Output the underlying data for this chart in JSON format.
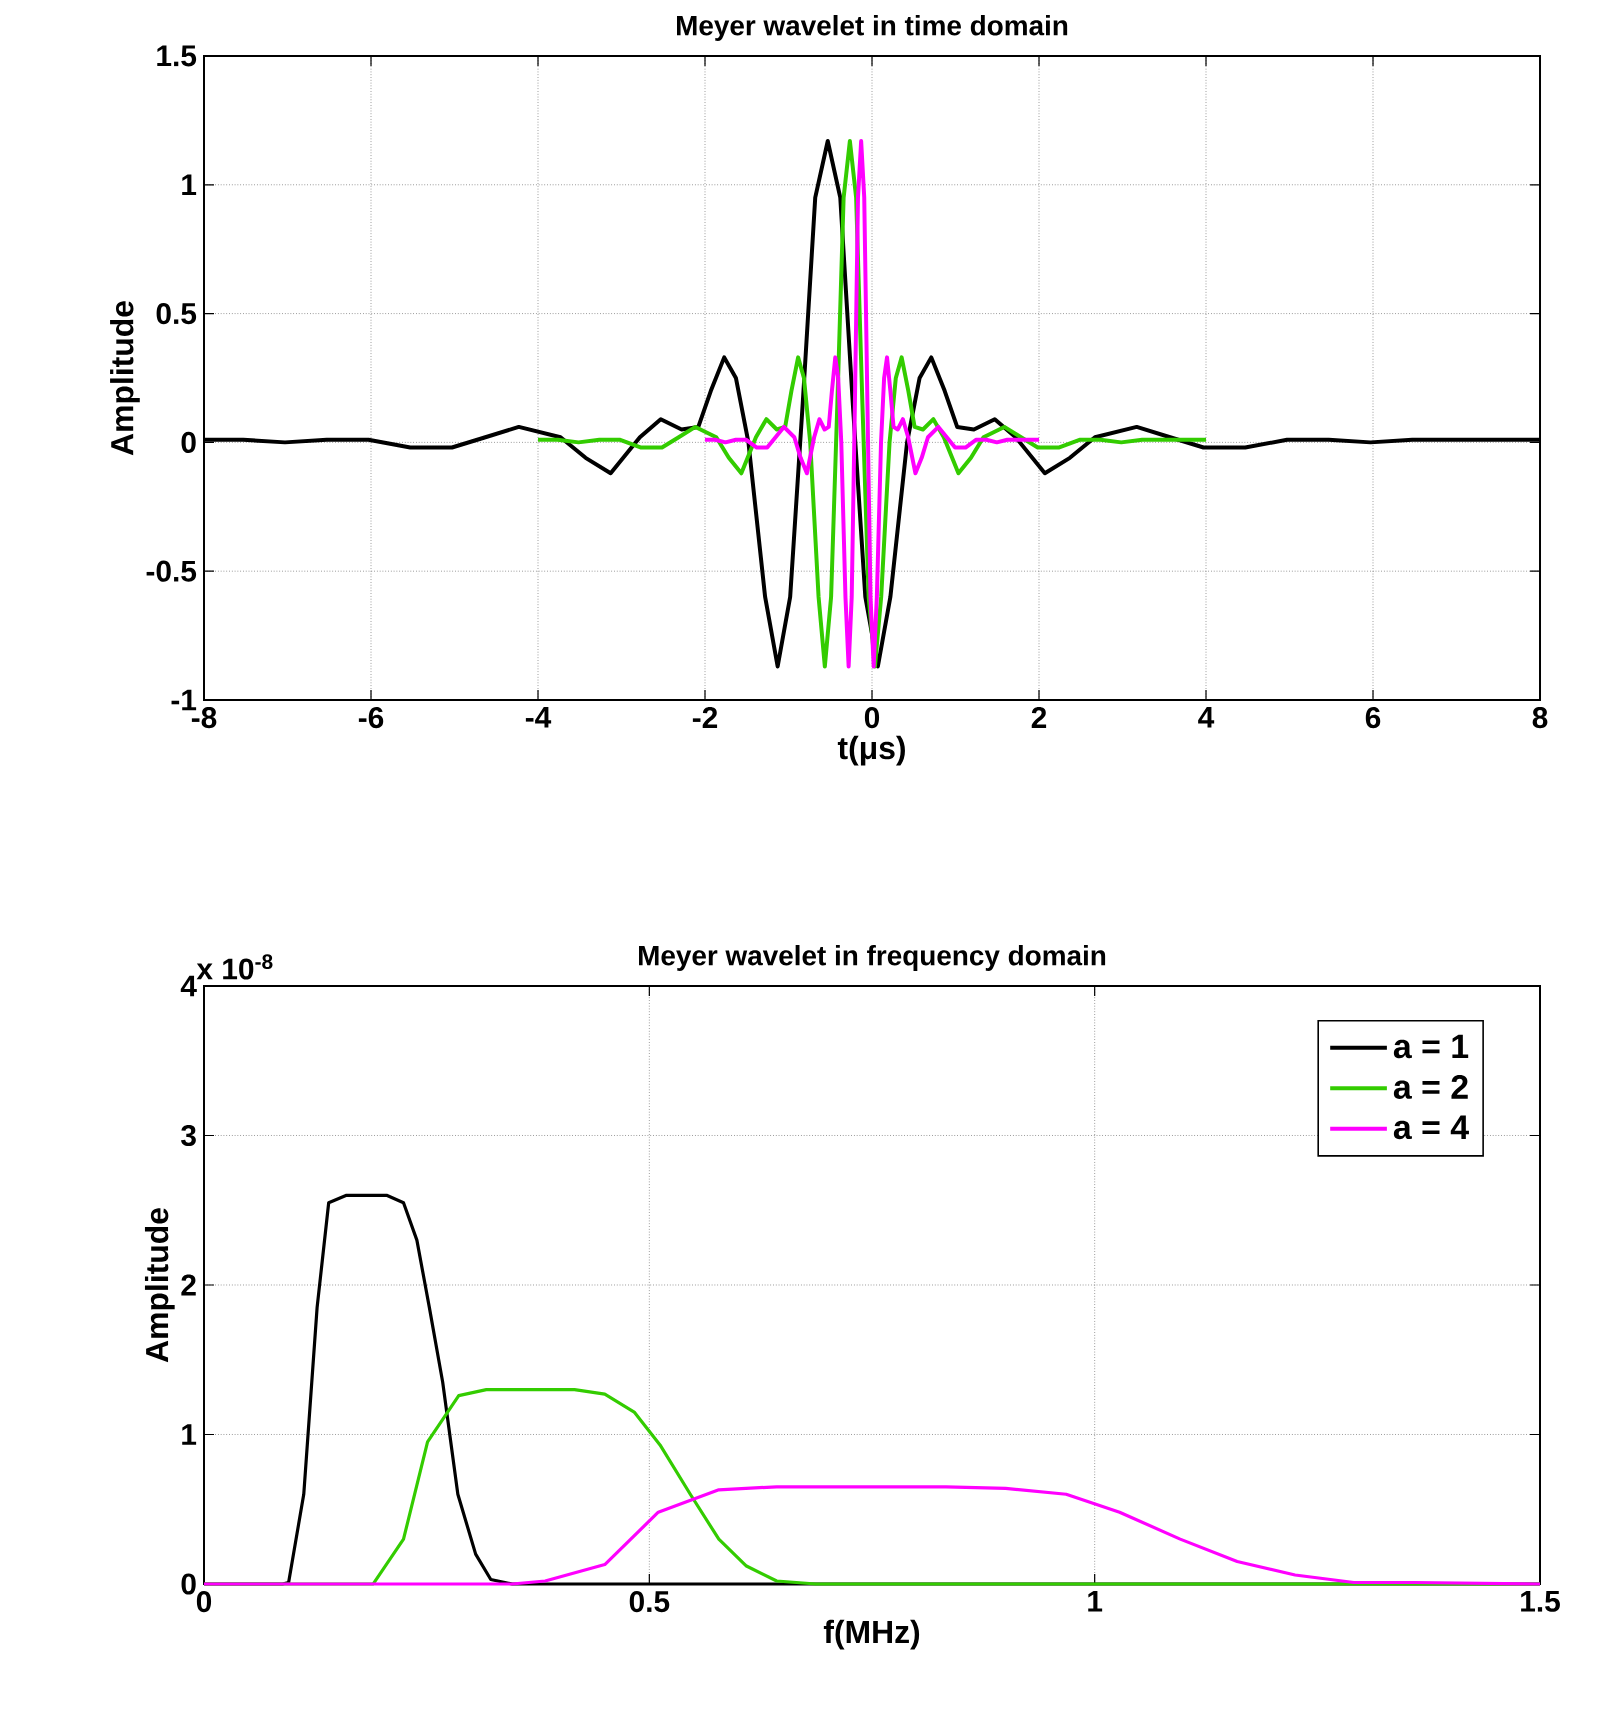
{
  "chart_data": [
    {
      "type": "line",
      "title": "Meyer wavelet in time domain",
      "xlabel": "t(μs)",
      "ylabel": "Amplitude",
      "xlim": [
        -8,
        8
      ],
      "ylim": [
        -1,
        1.5
      ],
      "xticks": [
        -8,
        -6,
        -4,
        -2,
        0,
        2,
        4,
        6,
        8
      ],
      "yticks": [
        -1,
        -0.5,
        0,
        0.5,
        1,
        1.5
      ],
      "grid": true,
      "line_style": "solid",
      "series": [
        {
          "color": "#000000",
          "x": [
            -8,
            -7.53,
            -7.03,
            -6.53,
            -6.03,
            -5.53,
            -5.03,
            -4.63,
            -4.23,
            -3.73,
            -3.43,
            -3.13,
            -2.78,
            -2.53,
            -2.28,
            -2.08,
            -1.93,
            -1.77,
            -1.63,
            -1.48,
            -1.28,
            -1.13,
            -0.98,
            -0.83,
            -0.68,
            -0.53,
            -0.38,
            -0.23,
            -0.08,
            0.07,
            0.22,
            0.42,
            0.57,
            0.71,
            0.87,
            1.02,
            1.22,
            1.47,
            1.72,
            2.07,
            2.37,
            2.67,
            3.17,
            3.57,
            3.97,
            4.47,
            4.97,
            5.47,
            5.97,
            6.47,
            6.97,
            7.47,
            8
          ],
          "values": [
            0.01,
            0.01,
            0.0,
            0.01,
            0.01,
            -0.02,
            -0.02,
            0.02,
            0.06,
            0.02,
            -0.06,
            -0.12,
            0.02,
            0.09,
            0.05,
            0.06,
            0.2,
            0.33,
            0.25,
            0.0,
            -0.6,
            -0.87,
            -0.6,
            0.15,
            0.95,
            1.17,
            0.95,
            0.15,
            -0.6,
            -0.87,
            -0.6,
            0.0,
            0.25,
            0.33,
            0.2,
            0.06,
            0.05,
            0.09,
            0.02,
            -0.12,
            -0.06,
            0.02,
            0.06,
            0.02,
            -0.02,
            -0.02,
            0.01,
            0.01,
            0.0,
            0.01,
            0.01,
            0.01,
            0.01
          ]
        },
        {
          "color": "#33cc00",
          "x": [
            -4.0,
            -3.765,
            -3.515,
            -3.265,
            -3.015,
            -2.765,
            -2.515,
            -2.315,
            -2.115,
            -1.865,
            -1.715,
            -1.565,
            -1.39,
            -1.265,
            -1.14,
            -1.04,
            -0.965,
            -0.885,
            -0.815,
            -0.74,
            -0.64,
            -0.565,
            -0.49,
            -0.415,
            -0.34,
            -0.265,
            -0.19,
            -0.115,
            -0.04,
            0.035,
            0.11,
            0.21,
            0.285,
            0.355,
            0.435,
            0.51,
            0.61,
            0.735,
            0.86,
            1.035,
            1.185,
            1.335,
            1.585,
            1.785,
            1.985,
            2.235,
            2.485,
            2.735,
            2.985,
            3.235,
            3.485,
            3.735,
            4.0
          ],
          "values": [
            0.01,
            0.01,
            0.0,
            0.01,
            0.01,
            -0.02,
            -0.02,
            0.02,
            0.06,
            0.02,
            -0.06,
            -0.12,
            0.02,
            0.09,
            0.05,
            0.06,
            0.2,
            0.33,
            0.25,
            0.0,
            -0.6,
            -0.87,
            -0.6,
            0.15,
            0.95,
            1.17,
            0.95,
            0.15,
            -0.6,
            -0.87,
            -0.6,
            0.0,
            0.25,
            0.33,
            0.2,
            0.06,
            0.05,
            0.09,
            0.02,
            -0.12,
            -0.06,
            0.02,
            0.06,
            0.02,
            -0.02,
            -0.02,
            0.01,
            0.01,
            0.0,
            0.01,
            0.01,
            0.01,
            0.01
          ]
        },
        {
          "color": "#ff00ff",
          "x": [
            -2.0,
            -1.88,
            -1.755,
            -1.63,
            -1.505,
            -1.38,
            -1.255,
            -1.155,
            -1.055,
            -0.93,
            -0.855,
            -0.78,
            -0.693,
            -0.63,
            -0.568,
            -0.518,
            -0.48,
            -0.44,
            -0.405,
            -0.368,
            -0.318,
            -0.28,
            -0.243,
            -0.205,
            -0.168,
            -0.13,
            -0.093,
            -0.055,
            -0.018,
            0.02,
            0.058,
            0.108,
            0.145,
            0.18,
            0.22,
            0.258,
            0.308,
            0.37,
            0.433,
            0.52,
            0.595,
            0.67,
            0.795,
            0.895,
            0.995,
            1.12,
            1.245,
            1.37,
            1.495,
            1.62,
            1.745,
            1.87,
            2.0
          ],
          "values": [
            0.01,
            0.01,
            0.0,
            0.01,
            0.01,
            -0.02,
            -0.02,
            0.02,
            0.06,
            0.02,
            -0.06,
            -0.12,
            0.02,
            0.09,
            0.05,
            0.06,
            0.2,
            0.33,
            0.25,
            0.0,
            -0.6,
            -0.87,
            -0.6,
            0.15,
            0.95,
            1.17,
            0.95,
            0.15,
            -0.6,
            -0.87,
            -0.6,
            0.0,
            0.25,
            0.33,
            0.2,
            0.06,
            0.05,
            0.09,
            0.02,
            -0.12,
            -0.06,
            0.02,
            0.06,
            0.02,
            -0.02,
            -0.02,
            0.01,
            0.01,
            0.0,
            0.01,
            0.01,
            0.01,
            0.01
          ]
        }
      ]
    },
    {
      "type": "line",
      "title": "Meyer wavelet in frequency domain",
      "xlabel": "f(MHz)",
      "ylabel": "Amplitude",
      "annotations": [
        "x 10$^{-8}$"
      ],
      "xlim": [
        0,
        1.5
      ],
      "ylim": [
        0,
        4
      ],
      "xticks": [
        0,
        0.5,
        1,
        1.5
      ],
      "yticks": [
        0,
        1,
        2,
        3,
        4
      ],
      "grid": true,
      "legend": "top right",
      "line_style": "solid",
      "series": [
        {
          "name": "a = 1",
          "color": "#000000",
          "x": [
            0,
            0.088,
            0.095,
            0.112,
            0.127,
            0.14,
            0.16,
            0.205,
            0.224,
            0.239,
            0.253,
            0.268,
            0.285,
            0.305,
            0.322,
            0.346,
            1.5
          ],
          "values": [
            0,
            0,
            0.01,
            0.6,
            1.85,
            2.55,
            2.6,
            2.6,
            2.55,
            2.3,
            1.85,
            1.35,
            0.6,
            0.2,
            0.03,
            0,
            0
          ]
        },
        {
          "name": "a = 2",
          "color": "#33cc00",
          "x": [
            0,
            0.19,
            0.224,
            0.251,
            0.286,
            0.317,
            0.416,
            0.45,
            0.483,
            0.512,
            0.546,
            0.578,
            0.609,
            0.643,
            0.687,
            1.5
          ],
          "values": [
            0,
            0,
            0.3,
            0.95,
            1.26,
            1.3,
            1.3,
            1.27,
            1.15,
            0.93,
            0.6,
            0.3,
            0.12,
            0.02,
            0,
            0
          ]
        },
        {
          "name": "a = 4",
          "color": "#ff00ff",
          "x": [
            0,
            0.346,
            0.383,
            0.45,
            0.51,
            0.578,
            0.643,
            0.833,
            0.9,
            0.968,
            1.028,
            1.096,
            1.16,
            1.225,
            1.291,
            1.36,
            1.5
          ],
          "values": [
            0,
            0,
            0.02,
            0.13,
            0.48,
            0.63,
            0.65,
            0.65,
            0.64,
            0.6,
            0.48,
            0.3,
            0.15,
            0.06,
            0.01,
            0.01,
            0
          ]
        }
      ]
    }
  ]
}
